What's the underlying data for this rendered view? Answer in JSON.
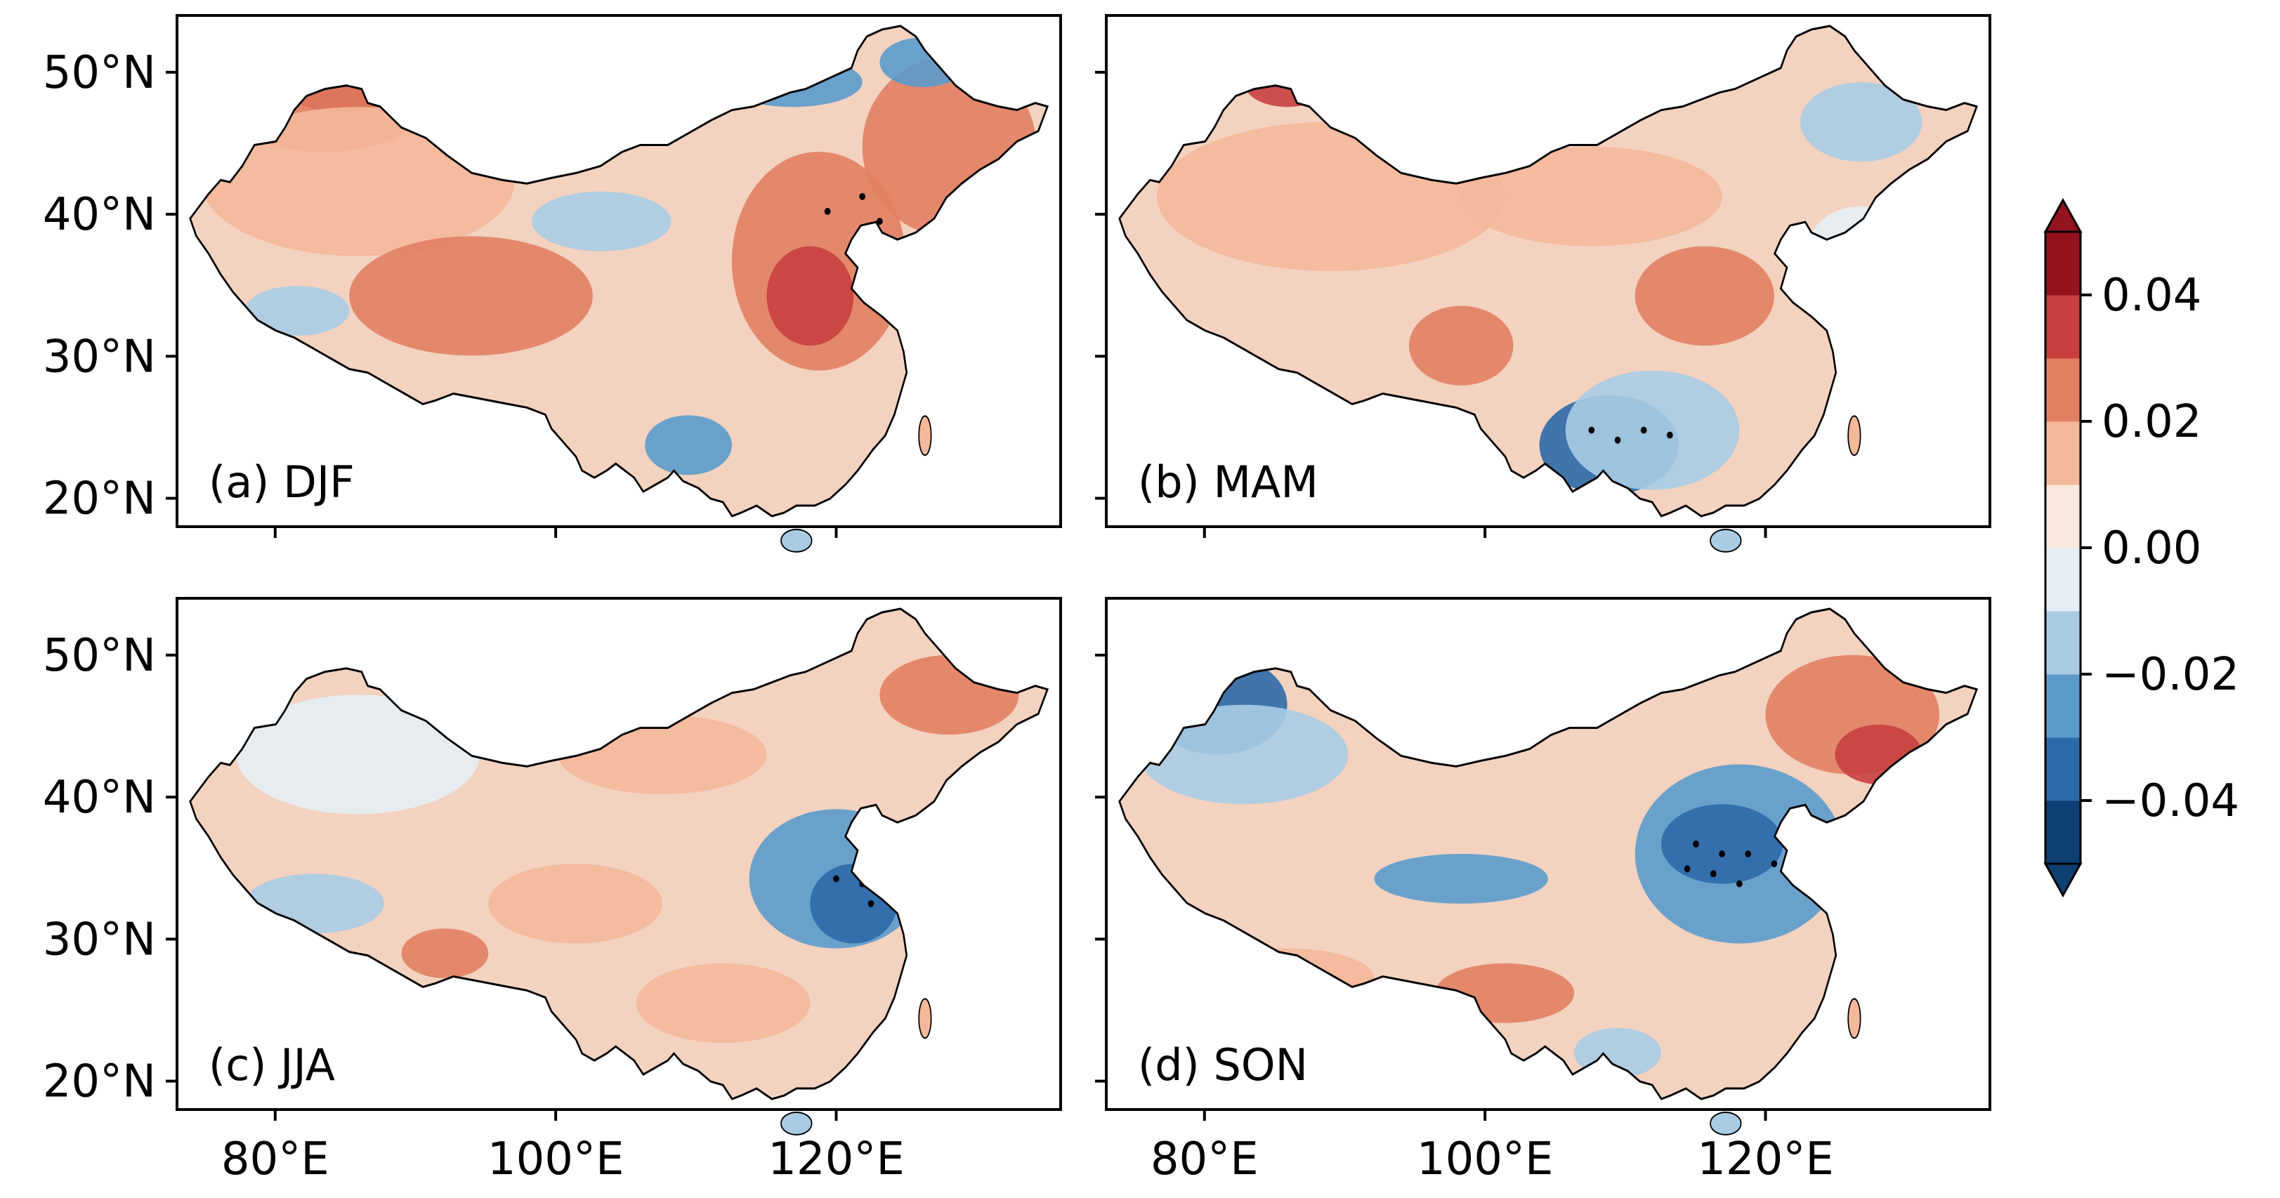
{
  "figure": {
    "colors": {
      "c-0.045": "#0e3f73",
      "c-0.035": "#2c69a8",
      "c-0.025": "#5b9bcc",
      "c-0.015": "#a9cce4",
      "c-0.005": "#e5eef5",
      "c0.005": "#f9e7dc",
      "c0.015": "#f4b89b",
      "c0.025": "#e27f63",
      "c0.035": "#c7403f",
      "c0.045": "#95121f",
      "land_neutral": "#f3d2c0",
      "outline": "#000000"
    }
  },
  "chart_data": {
    "type": "map",
    "variable": "trend",
    "lon_ticks": [
      "80°E",
      "100°E",
      "120°E"
    ],
    "lat_ticks": [
      "50°N",
      "40°N",
      "30°N",
      "20°N"
    ],
    "lon_range": [
      73,
      136
    ],
    "lat_range": [
      18,
      54
    ],
    "panels": [
      {
        "id": "a",
        "label": "(a) DJF",
        "season": "DJF",
        "dominant_sign": "positive"
      },
      {
        "id": "b",
        "label": "(b) MAM",
        "season": "MAM",
        "dominant_sign": "positive"
      },
      {
        "id": "c",
        "label": "(c) JJA",
        "season": "JJA",
        "dominant_sign": "mixed"
      },
      {
        "id": "d",
        "label": "(d) SON",
        "season": "SON",
        "dominant_sign": "mixed"
      }
    ],
    "colorbar": {
      "levels": [
        -0.05,
        -0.04,
        -0.03,
        -0.02,
        -0.01,
        0.0,
        0.01,
        0.02,
        0.03,
        0.04,
        0.05
      ],
      "tick_labels": [
        "0.04",
        "0.02",
        "0.00",
        "−0.02",
        "−0.04"
      ],
      "tick_values": [
        0.04,
        0.02,
        0.0,
        -0.02,
        -0.04
      ],
      "extend": "both"
    }
  }
}
